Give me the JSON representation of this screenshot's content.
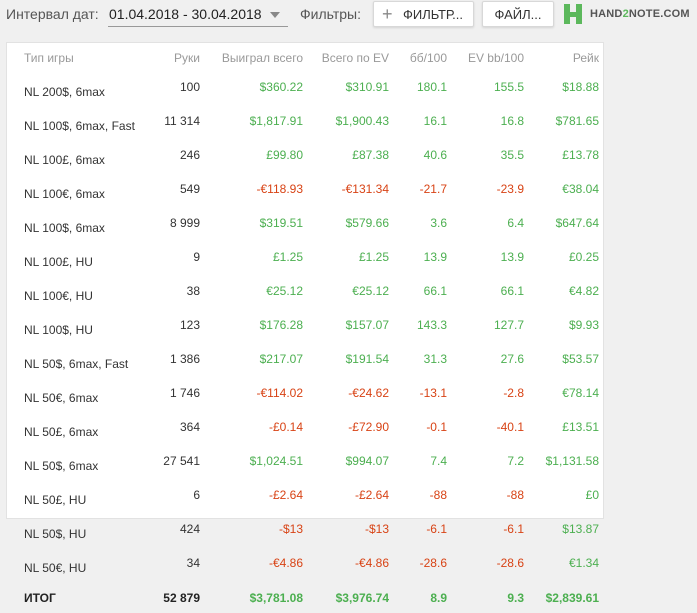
{
  "toolbar": {
    "interval_label": "Интервал дат:",
    "date_range": "01.04.2018 - 30.04.2018",
    "filters_label": "Фильтры:",
    "filter_button": "ФИЛЬТР...",
    "file_button": "ФАЙЛ..."
  },
  "logo": {
    "pre": "HAND",
    "two": "2",
    "post": "NOTE.COM"
  },
  "colors": {
    "positive": "#4caf50",
    "negative": "#d84315",
    "logo_green": "#5cb85c"
  },
  "table": {
    "headers": [
      "Тип игры",
      "Руки",
      "Выиграл всего",
      "Всего по EV",
      "бб/100",
      "EV bb/100",
      "Рейк"
    ],
    "rows": [
      [
        "NL 200$, 6max",
        "100",
        "$360.22",
        "$310.91",
        "180.1",
        "155.5",
        "$18.88"
      ],
      [
        "NL 100$, 6max, Fast",
        "11 314",
        "$1,817.91",
        "$1,900.43",
        "16.1",
        "16.8",
        "$781.65"
      ],
      [
        "NL 100£, 6max",
        "246",
        "£99.80",
        "£87.38",
        "40.6",
        "35.5",
        "£13.78"
      ],
      [
        "NL 100€, 6max",
        "549",
        "-€118.93",
        "-€131.34",
        "-21.7",
        "-23.9",
        "€38.04"
      ],
      [
        "NL 100$, 6max",
        "8 999",
        "$319.51",
        "$579.66",
        "3.6",
        "6.4",
        "$647.64"
      ],
      [
        "NL 100£, HU",
        "9",
        "£1.25",
        "£1.25",
        "13.9",
        "13.9",
        "£0.25"
      ],
      [
        "NL 100€, HU",
        "38",
        "€25.12",
        "€25.12",
        "66.1",
        "66.1",
        "€4.82"
      ],
      [
        "NL 100$, HU",
        "123",
        "$176.28",
        "$157.07",
        "143.3",
        "127.7",
        "$9.93"
      ],
      [
        "NL 50$, 6max, Fast",
        "1 386",
        "$217.07",
        "$191.54",
        "31.3",
        "27.6",
        "$53.57"
      ],
      [
        "NL 50€, 6max",
        "1 746",
        "-€114.02",
        "-€24.62",
        "-13.1",
        "-2.8",
        "€78.14"
      ],
      [
        "NL 50£, 6max",
        "364",
        "-£0.14",
        "-£72.90",
        "-0.1",
        "-40.1",
        "£13.51"
      ],
      [
        "NL 50$, 6max",
        "27 541",
        "$1,024.51",
        "$994.07",
        "7.4",
        "7.2",
        "$1,131.58"
      ],
      [
        "NL 50£, HU",
        "6",
        "-£2.64",
        "-£2.64",
        "-88",
        "-88",
        "£0"
      ],
      [
        "NL 50$, HU",
        "424",
        "-$13",
        "-$13",
        "-6.1",
        "-6.1",
        "$13.87"
      ],
      [
        "NL 50€, HU",
        "34",
        "-€4.86",
        "-€4.86",
        "-28.6",
        "-28.6",
        "€1.34"
      ]
    ],
    "total": [
      "ИТОГ",
      "52 879",
      "$3,781.08",
      "$3,976.74",
      "8.9",
      "9.3",
      "$2,839.61"
    ]
  }
}
